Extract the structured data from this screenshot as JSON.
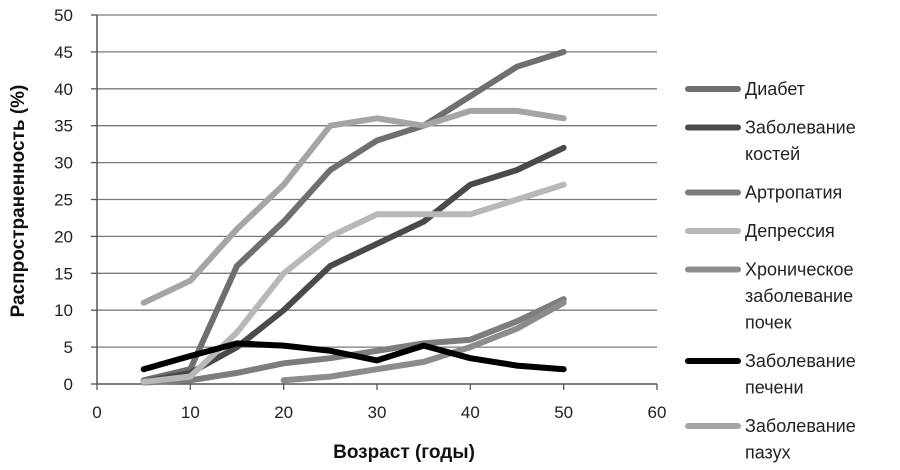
{
  "chart_data": {
    "type": "line",
    "title": "",
    "xlabel": "Возраст (годы)",
    "ylabel": "Распространенность (%)",
    "xlim": [
      0,
      60
    ],
    "ylim": [
      0,
      50
    ],
    "x_ticks": [
      0,
      10,
      20,
      30,
      40,
      50,
      60
    ],
    "y_ticks": [
      0,
      5,
      10,
      15,
      20,
      25,
      30,
      35,
      40,
      45,
      50
    ],
    "grid": "horizontal",
    "legend_position": "right",
    "series": [
      {
        "name": "Диабет",
        "legend_lines": [
          "Диабет"
        ],
        "color": "#6f6f6f",
        "width": 6,
        "x": [
          5,
          10,
          15,
          20,
          25,
          30,
          35,
          40,
          45,
          50
        ],
        "y": [
          0.5,
          2,
          16,
          22,
          29,
          33,
          35,
          39,
          43,
          45
        ]
      },
      {
        "name": "Заболевание костей",
        "legend_lines": [
          "Заболевание",
          "костей"
        ],
        "color": "#4a4a4a",
        "width": 6,
        "x": [
          5,
          10,
          15,
          20,
          25,
          30,
          35,
          40,
          45,
          50
        ],
        "y": [
          0.3,
          1.5,
          5,
          10,
          16,
          19,
          22,
          27,
          29,
          32
        ]
      },
      {
        "name": "Артропатия",
        "legend_lines": [
          "Артропатия"
        ],
        "color": "#7d7d7d",
        "width": 6,
        "x": [
          5,
          10,
          15,
          20,
          25,
          30,
          35,
          40,
          45,
          50
        ],
        "y": [
          0.2,
          0.5,
          1.5,
          2.8,
          3.5,
          4.5,
          5.5,
          6,
          8.5,
          11.5
        ]
      },
      {
        "name": "Депрессия",
        "legend_lines": [
          "Депрессия"
        ],
        "color": "#b8b8b8",
        "width": 6,
        "x": [
          5,
          10,
          15,
          20,
          25,
          30,
          35,
          40,
          45,
          50
        ],
        "y": [
          0.3,
          1,
          7,
          15,
          20,
          23,
          23,
          23,
          25,
          27
        ]
      },
      {
        "name": "Хроническое заболевание почек",
        "legend_lines": [
          "Хроническое",
          "заболевание",
          "почек"
        ],
        "color": "#8c8c8c",
        "width": 6,
        "x": [
          20,
          25,
          30,
          35,
          40,
          45,
          50
        ],
        "y": [
          0.5,
          1,
          2,
          3,
          5,
          7.5,
          11
        ]
      },
      {
        "name": "Заболевание печени",
        "legend_lines": [
          "Заболевание",
          "печени"
        ],
        "color": "#000000",
        "width": 6,
        "x": [
          5,
          10,
          15,
          20,
          25,
          30,
          35,
          40,
          45,
          50
        ],
        "y": [
          2,
          3.8,
          5.5,
          5.2,
          4.5,
          3.2,
          5.2,
          3.5,
          2.5,
          2
        ]
      },
      {
        "name": "Заболевание пазух",
        "legend_lines": [
          "Заболевание",
          "пазух"
        ],
        "color": "#a5a5a5",
        "width": 6,
        "x": [
          5,
          10,
          15,
          20,
          25,
          30,
          35,
          40,
          45,
          50
        ],
        "y": [
          11,
          14,
          21,
          27,
          35,
          36,
          35,
          37,
          37,
          36
        ]
      }
    ]
  }
}
